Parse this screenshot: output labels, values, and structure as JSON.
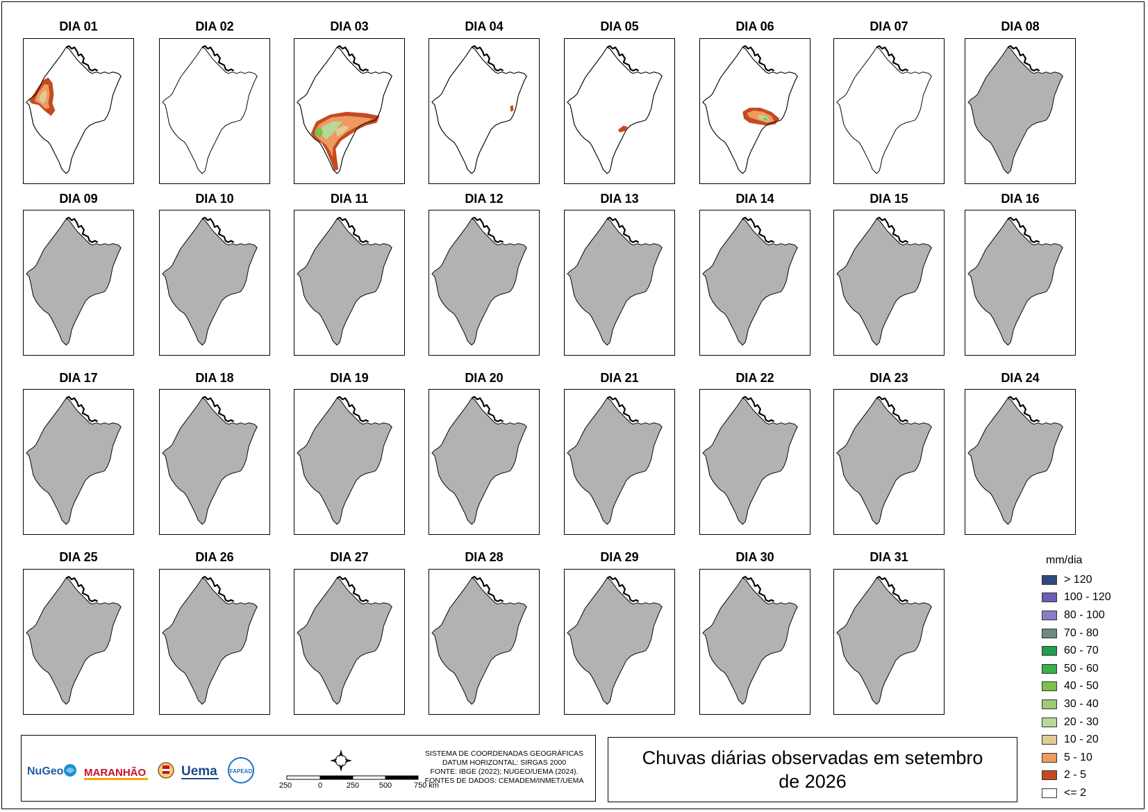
{
  "map_title": "Chuvas diárias observadas em setembro de 2026",
  "days": [
    {
      "label": "DIA 01",
      "status": "rain",
      "rain_pattern": "west"
    },
    {
      "label": "DIA 02",
      "status": "no-rain"
    },
    {
      "label": "DIA 03",
      "status": "rain",
      "rain_pattern": "south-center"
    },
    {
      "label": "DIA 04",
      "status": "rain",
      "rain_pattern": "east-dot"
    },
    {
      "label": "DIA 05",
      "status": "rain",
      "rain_pattern": "center-small"
    },
    {
      "label": "DIA 06",
      "status": "rain",
      "rain_pattern": "center-east"
    },
    {
      "label": "DIA 07",
      "status": "no-rain"
    },
    {
      "label": "DIA 08",
      "status": "no-data"
    },
    {
      "label": "DIA 09",
      "status": "no-data"
    },
    {
      "label": "DIA 10",
      "status": "no-data"
    },
    {
      "label": "DIA 11",
      "status": "no-data"
    },
    {
      "label": "DIA 12",
      "status": "no-data"
    },
    {
      "label": "DIA 13",
      "status": "no-data"
    },
    {
      "label": "DIA 14",
      "status": "no-data"
    },
    {
      "label": "DIA 15",
      "status": "no-data"
    },
    {
      "label": "DIA 16",
      "status": "no-data"
    },
    {
      "label": "DIA 17",
      "status": "no-data"
    },
    {
      "label": "DIA 18",
      "status": "no-data"
    },
    {
      "label": "DIA 19",
      "status": "no-data"
    },
    {
      "label": "DIA 20",
      "status": "no-data"
    },
    {
      "label": "DIA 21",
      "status": "no-data"
    },
    {
      "label": "DIA 22",
      "status": "no-data"
    },
    {
      "label": "DIA 23",
      "status": "no-data"
    },
    {
      "label": "DIA 24",
      "status": "no-data"
    },
    {
      "label": "DIA 25",
      "status": "no-data"
    },
    {
      "label": "DIA 26",
      "status": "no-data"
    },
    {
      "label": "DIA 27",
      "status": "no-data"
    },
    {
      "label": "DIA 28",
      "status": "no-data"
    },
    {
      "label": "DIA 29",
      "status": "no-data"
    },
    {
      "label": "DIA 30",
      "status": "no-data"
    },
    {
      "label": "DIA 31",
      "status": "no-data"
    }
  ],
  "colors": {
    "no_data_fill": "#b2b2b2",
    "no_rain_fill": "#ffffff",
    "outline": "#000000"
  },
  "legend": {
    "title": "mm/dia",
    "items": [
      {
        "label": "> 120",
        "color": "#2e4a7d"
      },
      {
        "label": "100 - 120",
        "color": "#6a5fb5"
      },
      {
        "label": "80 - 100",
        "color": "#8a7cc8"
      },
      {
        "label": "70 - 80",
        "color": "#6e8a82"
      },
      {
        "label": "60 - 70",
        "color": "#1e9e4e"
      },
      {
        "label": "50 - 60",
        "color": "#35b04a"
      },
      {
        "label": "40 - 50",
        "color": "#7cc14a"
      },
      {
        "label": "30 - 40",
        "color": "#9bcb73"
      },
      {
        "label": "20 - 30",
        "color": "#b7d89b"
      },
      {
        "label": "10 - 20",
        "color": "#dfcc96"
      },
      {
        "label": "5 - 10",
        "color": "#ef9a60"
      },
      {
        "label": "2 - 5",
        "color": "#c44a22"
      },
      {
        "label": "<= 2",
        "color": "#ffffff"
      }
    ]
  },
  "scale_bar": {
    "ticks": [
      "250",
      "0",
      "250",
      "500",
      "750 km"
    ]
  },
  "credits": {
    "line1": "SISTEMA DE COORDENADAS GEOGRÁFICAS",
    "line2": "DATUM HORIZONTAL: SIRGAS 2000",
    "line3": "FONTE: IBGE (2022); NUGEO/UEMA (2024).",
    "line4": "FONTES DE DADOS: CEMADEM/INMET/UEMA"
  },
  "logos": {
    "nugeo": "NuGeo",
    "maranhao": "MARANHÃO",
    "uema": "Uema",
    "fapead": "FAPEAD"
  }
}
